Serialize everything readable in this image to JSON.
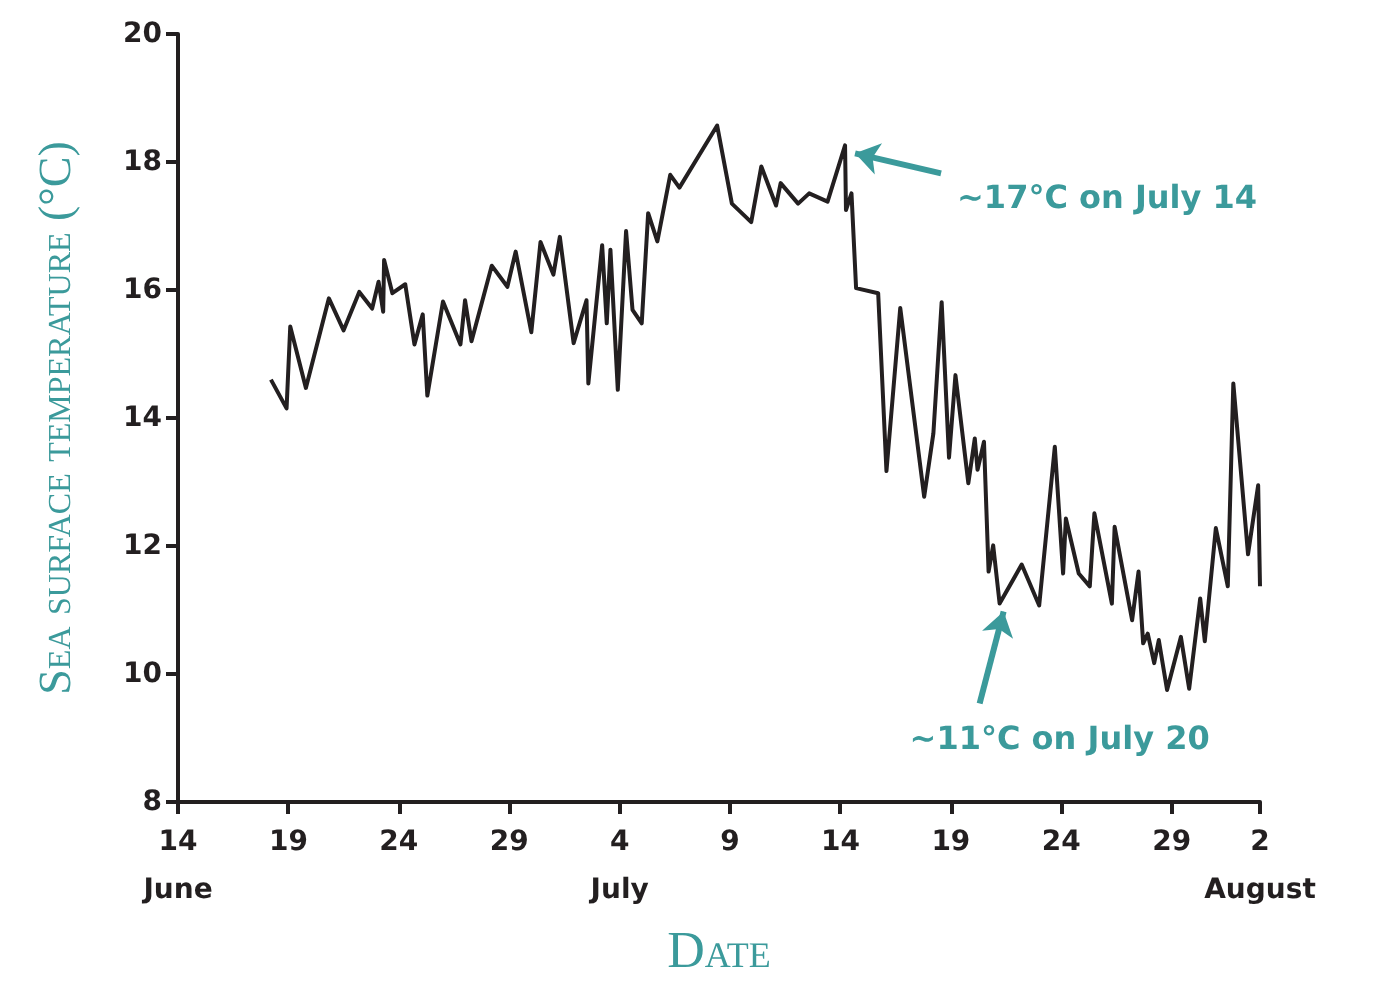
{
  "chart_data": {
    "type": "line",
    "xlabel": "Date",
    "ylabel": "Sea surface temperature (°C)",
    "x": [
      "--06-18T05:00",
      "--06-18T22:00",
      "--06-19T02:00",
      "--06-19T19:00",
      "--06-20T20:00",
      "--06-21T12:00",
      "--06-22T05:00",
      "--06-22T19:00",
      "--06-23T02:00",
      "--06-23T07:00",
      "--06-23T08:00",
      "--06-23T17:00",
      "--06-24T07:00",
      "--06-24T17:00",
      "--06-25T02:00",
      "--06-25T07:00",
      "--06-26T00:00",
      "--06-26T19:00",
      "--06-27T00:00",
      "--06-27T07:00",
      "--06-28T05:00",
      "--06-28T22:00",
      "--06-29T07:00",
      "--06-30T00:00",
      "--06-30T10:00",
      "--07-01T00:00",
      "--07-01T07:00",
      "--07-01T22:00",
      "--07-02T12:00",
      "--07-02T14:00",
      "--07-03T05:00",
      "--07-03T10:00",
      "--07-03T14:00",
      "--07-03T22:00",
      "--07-04T07:00",
      "--07-04T14:00",
      "--07-05T00:00",
      "--07-05T07:00",
      "--07-05T17:00",
      "--07-06T07:00",
      "--07-06T17:00",
      "--07-08T10:00",
      "--07-09T02:00",
      "--07-09T23:00",
      "--07-10T10:00",
      "--07-11T02:00",
      "--07-11T07:00",
      "--07-12T02:00",
      "--07-12T14:00",
      "--07-13T10:00",
      "--07-14T05:00",
      "--07-14T06:00",
      "--07-14T12:00",
      "--07-14T17:00",
      "--07-15T17:00",
      "--07-16T02:00",
      "--07-16T17:00",
      "--07-17T19:00",
      "--07-18T05:00",
      "--07-18T14:00",
      "--07-18T22:00",
      "--07-19T05:00",
      "--07-19T19:00",
      "--07-20T02:00",
      "--07-20T05:00",
      "--07-20T12:00",
      "--07-20T17:00",
      "--07-20T22:00",
      "--07-21T05:00",
      "--07-22T05:00",
      "--07-23T00:00",
      "--07-23T17:00",
      "--07-24T02:00",
      "--07-24T05:00",
      "--07-24T19:00",
      "--07-25T07:00",
      "--07-25T12:00",
      "--07-26T07:00",
      "--07-26T10:00",
      "--07-27T05:00",
      "--07-27T12:00",
      "--07-27T17:00",
      "--07-27T22:00",
      "--07-28T05:00",
      "--07-28T10:00",
      "--07-28T19:00",
      "--07-29T10:00",
      "--07-29T19:00",
      "--07-30T07:00",
      "--07-30T12:00",
      "--07-31T00:00",
      "--07-31T13:00",
      "--07-31T19:00",
      "--08-01T11:00",
      "--08-01T22:00",
      "--08-02T00:00"
    ],
    "series": [
      {
        "color": "#231f20",
        "values": [
          14.6,
          14.15,
          15.43,
          14.47,
          15.87,
          15.37,
          15.97,
          15.71,
          16.13,
          15.66,
          16.47,
          15.95,
          16.09,
          15.15,
          15.62,
          14.35,
          15.82,
          15.15,
          15.84,
          15.2,
          16.38,
          16.05,
          16.6,
          15.34,
          16.75,
          16.24,
          16.83,
          15.17,
          15.84,
          14.54,
          16.7,
          15.48,
          16.63,
          14.44,
          16.92,
          15.69,
          15.48,
          17.2,
          16.76,
          17.8,
          17.6,
          18.57,
          17.35,
          17.06,
          17.93,
          17.32,
          17.67,
          17.35,
          17.51,
          17.38,
          18.26,
          17.25,
          17.51,
          16.03,
          15.95,
          13.17,
          15.72,
          12.77,
          13.76,
          15.81,
          13.38,
          14.67,
          12.98,
          13.68,
          13.19,
          13.63,
          11.6,
          12.01,
          11.1,
          11.71,
          11.07,
          13.55,
          11.57,
          12.43,
          11.57,
          11.37,
          12.51,
          11.1,
          12.3,
          10.84,
          11.6,
          10.48,
          10.63,
          10.17,
          10.53,
          9.75,
          10.58,
          9.77,
          11.18,
          10.51,
          12.28,
          11.37,
          14.54,
          11.87,
          12.95,
          11.37
        ]
      }
    ],
    "xlim": [
      "--06-14",
      "--08-02"
    ],
    "xticks": [
      {
        "value": "--06-14",
        "label": "14\nJune"
      },
      {
        "value": "--06-19",
        "label": "19"
      },
      {
        "value": "--06-24",
        "label": "24"
      },
      {
        "value": "--06-29",
        "label": "29"
      },
      {
        "value": "--07-04",
        "label": "4\nJuly"
      },
      {
        "value": "--07-09",
        "label": "9"
      },
      {
        "value": "--07-14",
        "label": "14"
      },
      {
        "value": "--07-19",
        "label": "19"
      },
      {
        "value": "--07-24",
        "label": "24"
      },
      {
        "value": "--07-29",
        "label": "29"
      },
      {
        "value": "--08-02",
        "label": "2\nAugust"
      }
    ],
    "ylim": [
      8,
      20
    ],
    "yticks": [
      8,
      10,
      12,
      14,
      16,
      18,
      20
    ],
    "annotations": [
      {
        "text": "~17°C on July 14",
        "x": "--07-14T05:00",
        "y": 18.26
      },
      {
        "text": "~11°C on July 20",
        "x": "--07-21T05:00",
        "y": 11.1
      }
    ],
    "marker": "none",
    "line_style": "solid"
  }
}
